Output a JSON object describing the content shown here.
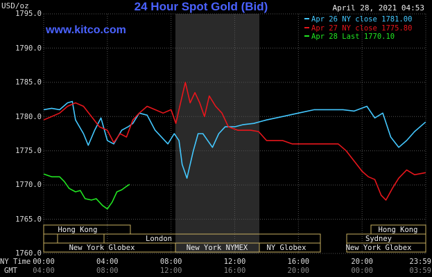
{
  "header": {
    "unit": "USD/oz",
    "title": "24 Hour Spot Gold (Bid)",
    "timestamp": "April 28, 2021 04:53",
    "watermark": "www.kitco.com"
  },
  "legend": [
    {
      "label": "Apr 26 NY close 1781.00",
      "color": "#44c8ff"
    },
    {
      "label": "Apr 27 NY close 1775.80",
      "color": "#e8161c"
    },
    {
      "label": "Apr 28 Last 1770.10",
      "color": "#22e622"
    }
  ],
  "axis": {
    "y_ticks": [
      "1795.0",
      "1790.0",
      "1785.0",
      "1780.0",
      "1775.0",
      "1770.0",
      "1765.0",
      "1760.0"
    ],
    "x_label_ny": "NY Time",
    "x_label_gmt": "GMT",
    "ny_ticks": [
      "00:00",
      "04:00",
      "08:00",
      "12:00",
      "16:00",
      "20:00",
      "23:59"
    ],
    "gmt_ticks": [
      "04:00",
      "08:00",
      "12:00",
      "16:00",
      "20:00",
      "00:00",
      "03:59"
    ]
  },
  "sessions": {
    "hong_kong_1": "Hong Kong",
    "london": "London",
    "new_york_globex_1": "New York Globex",
    "new_york_nymex": "New York NYMEX",
    "ny_globex": "NY Globex",
    "sydney": "Sydney",
    "hong_kong_2": "Hong Kong",
    "new_york_globex_2": "New York Globex"
  },
  "colors": {
    "background": "#000000",
    "title": "#4a62ff",
    "grid": "#555555",
    "highlight": "#2a2a2a",
    "session_box": "#c8b060",
    "axis_text": "#dddddd"
  },
  "chart_data": {
    "type": "line",
    "title": "24 Hour Spot Gold (Bid)",
    "ylabel": "USD/oz",
    "xlabel": "NY Time",
    "ylim": [
      1760,
      1795
    ],
    "xlim": [
      0,
      24
    ],
    "grid": true,
    "legend_position": "top-right",
    "series": [
      {
        "name": "Apr 26 NY close 1781.00",
        "color": "#44c8ff",
        "points": [
          [
            0,
            1781
          ],
          [
            0.5,
            1781.2
          ],
          [
            1,
            1781
          ],
          [
            1.5,
            1782
          ],
          [
            1.8,
            1782.2
          ],
          [
            2,
            1779.5
          ],
          [
            2.5,
            1777.5
          ],
          [
            2.8,
            1775.8
          ],
          [
            3.2,
            1778
          ],
          [
            3.6,
            1779.8
          ],
          [
            4,
            1776.5
          ],
          [
            4.4,
            1776
          ],
          [
            4.9,
            1778
          ],
          [
            5.3,
            1778.5
          ],
          [
            5.6,
            1779
          ],
          [
            6,
            1780.5
          ],
          [
            6.5,
            1780.2
          ],
          [
            7,
            1778
          ],
          [
            7.4,
            1777
          ],
          [
            7.8,
            1776
          ],
          [
            8.2,
            1777.5
          ],
          [
            8.5,
            1776.5
          ],
          [
            8.7,
            1773
          ],
          [
            9,
            1771
          ],
          [
            9.4,
            1775
          ],
          [
            9.7,
            1777.5
          ],
          [
            10,
            1777.5
          ],
          [
            10.3,
            1776.5
          ],
          [
            10.6,
            1775.5
          ],
          [
            11,
            1777.5
          ],
          [
            11.4,
            1778.5
          ],
          [
            12,
            1778.5
          ],
          [
            12.5,
            1778.8
          ],
          [
            13.2,
            1779
          ],
          [
            14,
            1779.5
          ],
          [
            15,
            1780
          ],
          [
            16,
            1780.5
          ],
          [
            17,
            1781
          ],
          [
            18,
            1781
          ],
          [
            18.8,
            1781
          ],
          [
            19.5,
            1780.8
          ],
          [
            20.3,
            1781.5
          ],
          [
            20.8,
            1779.8
          ],
          [
            21.3,
            1780.5
          ],
          [
            21.8,
            1777
          ],
          [
            22.3,
            1775.5
          ],
          [
            22.8,
            1776.5
          ],
          [
            23.3,
            1777.8
          ],
          [
            23.99,
            1779.2
          ]
        ]
      },
      {
        "name": "Apr 27 NY close 1775.80",
        "color": "#e8161c",
        "points": [
          [
            0,
            1779.5
          ],
          [
            0.5,
            1780
          ],
          [
            1,
            1780.5
          ],
          [
            1.5,
            1781.5
          ],
          [
            2,
            1782
          ],
          [
            2.5,
            1781.5
          ],
          [
            3,
            1780
          ],
          [
            3.5,
            1778.5
          ],
          [
            4,
            1778
          ],
          [
            4.4,
            1776.2
          ],
          [
            4.8,
            1777.5
          ],
          [
            5.2,
            1777
          ],
          [
            5.6,
            1779.5
          ],
          [
            6,
            1780.5
          ],
          [
            6.5,
            1781.5
          ],
          [
            7,
            1781
          ],
          [
            7.5,
            1780.5
          ],
          [
            8,
            1781
          ],
          [
            8.3,
            1779
          ],
          [
            8.6,
            1782
          ],
          [
            8.9,
            1785
          ],
          [
            9.2,
            1782
          ],
          [
            9.5,
            1783.5
          ],
          [
            9.8,
            1782
          ],
          [
            10.1,
            1780
          ],
          [
            10.4,
            1783
          ],
          [
            10.8,
            1781.5
          ],
          [
            11.2,
            1780.5
          ],
          [
            11.6,
            1778.5
          ],
          [
            12.2,
            1778
          ],
          [
            13,
            1778
          ],
          [
            13.5,
            1777.8
          ],
          [
            14,
            1776.5
          ],
          [
            14.5,
            1776.5
          ],
          [
            15,
            1776.5
          ],
          [
            15.6,
            1776
          ],
          [
            16.3,
            1776
          ],
          [
            17,
            1776
          ],
          [
            17.8,
            1776
          ],
          [
            18.5,
            1776
          ],
          [
            19,
            1775
          ],
          [
            19.5,
            1773.5
          ],
          [
            20,
            1772
          ],
          [
            20.4,
            1771.2
          ],
          [
            20.8,
            1770.8
          ],
          [
            21.2,
            1768.5
          ],
          [
            21.5,
            1767.8
          ],
          [
            21.9,
            1769.5
          ],
          [
            22.3,
            1771
          ],
          [
            22.8,
            1772.2
          ],
          [
            23.3,
            1771.5
          ],
          [
            23.99,
            1771.8
          ]
        ]
      },
      {
        "name": "Apr 28 Last 1770.10",
        "color": "#22e622",
        "points": [
          [
            0,
            1771.6
          ],
          [
            0.5,
            1771.2
          ],
          [
            1,
            1771.2
          ],
          [
            1.3,
            1770.5
          ],
          [
            1.6,
            1769.5
          ],
          [
            2,
            1769
          ],
          [
            2.3,
            1769.2
          ],
          [
            2.6,
            1768
          ],
          [
            3,
            1767.8
          ],
          [
            3.3,
            1768
          ],
          [
            3.7,
            1767
          ],
          [
            4,
            1766.5
          ],
          [
            4.3,
            1767.5
          ],
          [
            4.6,
            1769
          ],
          [
            4.9,
            1769.3
          ],
          [
            5.2,
            1769.8
          ],
          [
            5.4,
            1770.1
          ]
        ]
      }
    ]
  }
}
